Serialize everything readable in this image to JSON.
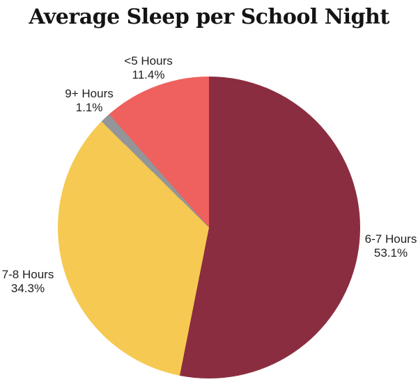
{
  "title": "Average Sleep per School Night",
  "background": "#ffffff",
  "title_color": "#141414",
  "label_text_color": "#1e1e1e",
  "chart_data": {
    "type": "pie",
    "title": "Average Sleep per School Night",
    "direction": "clockwise",
    "start_angle_deg": 0,
    "legend": "none",
    "labels_outside": true,
    "categories": [
      "6-7 Hours",
      "7-8 Hours",
      "9+ Hours",
      "<5 Hours"
    ],
    "values": [
      53.1,
      34.3,
      1.1,
      11.4
    ],
    "slices": [
      {
        "label": "6-7 Hours",
        "value_pct": 53.1,
        "display_pct": "53.1%",
        "color": "#8B2D40",
        "label_position": "right"
      },
      {
        "label": "7-8 Hours",
        "value_pct": 34.3,
        "display_pct": "34.3%",
        "color": "#F5C952",
        "label_position": "left"
      },
      {
        "label": "9+ Hours",
        "value_pct": 1.1,
        "display_pct": "1.1%",
        "color": "#939598",
        "label_position": "upper-left"
      },
      {
        "label": "<5 Hours",
        "value_pct": 11.4,
        "display_pct": "11.4%",
        "color": "#EE615E",
        "label_position": "top"
      }
    ]
  }
}
